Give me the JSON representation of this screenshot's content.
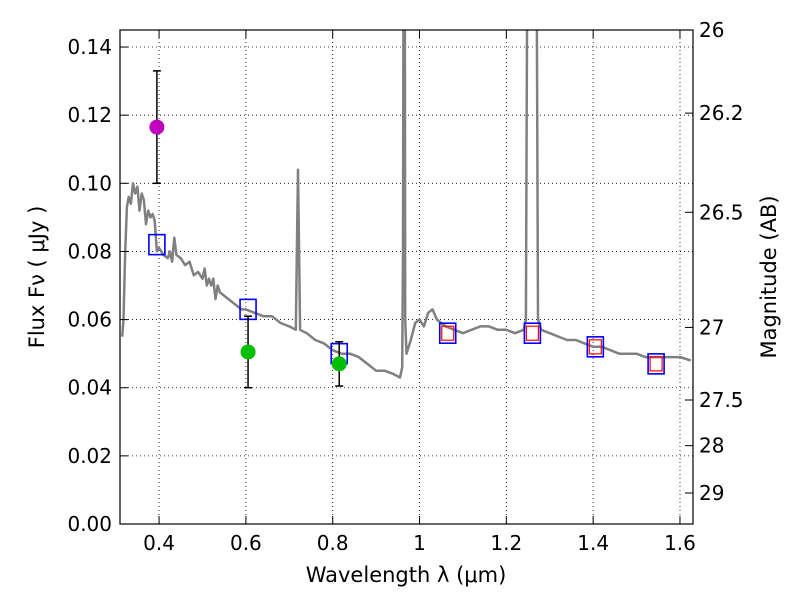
{
  "chart_data": {
    "type": "scatter",
    "title": "",
    "xlabel": "Wavelength  λ (μm)",
    "ylabel": "Flux  Fν  ( μJy )",
    "ylabel_right": "Magnitude (AB)",
    "xlim": [
      0.31,
      1.63
    ],
    "ylim": [
      0.0,
      0.145
    ],
    "grid": true,
    "x_ticks": [
      0.4,
      0.6,
      0.8,
      1.0,
      1.2,
      1.4,
      1.6
    ],
    "x_tick_labels": [
      "0.4",
      "0.6",
      "0.8",
      "1",
      "1.2",
      "1.4",
      "1.6"
    ],
    "y_ticks": [
      0.0,
      0.02,
      0.04,
      0.06,
      0.08,
      0.1,
      0.12,
      0.14
    ],
    "y_tick_labels": [
      "0.00",
      "0.02",
      "0.04",
      "0.06",
      "0.08",
      "0.10",
      "0.12",
      "0.14"
    ],
    "right_ticks": [
      {
        "label": "26",
        "flux": 0.145
      },
      {
        "label": "26.2",
        "flux": 0.1206
      },
      {
        "label": "26.5",
        "flux": 0.0915
      },
      {
        "label": "27",
        "flux": 0.0577
      },
      {
        "label": "27.5",
        "flux": 0.0364
      },
      {
        "label": "28",
        "flux": 0.023
      },
      {
        "label": "29",
        "flux": 0.0091
      }
    ],
    "colors": {
      "sed": "#808080",
      "model_box": "#0000ff",
      "nir_box": "#ff0000",
      "err": "#000000",
      "magenta": "#bf00bf",
      "green": "#00bf00",
      "grid": "#000000"
    },
    "series": [
      {
        "name": "SED model",
        "kind": "line",
        "points": [
          [
            0.315,
            0.055
          ],
          [
            0.318,
            0.06
          ],
          [
            0.322,
            0.08
          ],
          [
            0.326,
            0.093
          ],
          [
            0.33,
            0.096
          ],
          [
            0.335,
            0.094
          ],
          [
            0.34,
            0.1
          ],
          [
            0.345,
            0.097
          ],
          [
            0.35,
            0.099
          ],
          [
            0.355,
            0.092
          ],
          [
            0.36,
            0.097
          ],
          [
            0.365,
            0.095
          ],
          [
            0.37,
            0.088
          ],
          [
            0.375,
            0.092
          ],
          [
            0.38,
            0.09
          ],
          [
            0.385,
            0.091
          ],
          [
            0.39,
            0.089
          ],
          [
            0.395,
            0.08
          ],
          [
            0.4,
            0.081
          ],
          [
            0.41,
            0.079
          ],
          [
            0.42,
            0.078
          ],
          [
            0.425,
            0.08
          ],
          [
            0.43,
            0.077
          ],
          [
            0.435,
            0.084
          ],
          [
            0.44,
            0.079
          ],
          [
            0.45,
            0.078
          ],
          [
            0.46,
            0.076
          ],
          [
            0.47,
            0.077
          ],
          [
            0.48,
            0.073
          ],
          [
            0.49,
            0.074
          ],
          [
            0.5,
            0.072
          ],
          [
            0.505,
            0.075
          ],
          [
            0.51,
            0.07
          ],
          [
            0.515,
            0.072
          ],
          [
            0.52,
            0.07
          ],
          [
            0.525,
            0.072
          ],
          [
            0.53,
            0.066
          ],
          [
            0.535,
            0.07
          ],
          [
            0.54,
            0.068
          ],
          [
            0.55,
            0.067
          ],
          [
            0.56,
            0.066
          ],
          [
            0.57,
            0.065
          ],
          [
            0.58,
            0.064
          ],
          [
            0.59,
            0.063
          ],
          [
            0.6,
            0.063
          ],
          [
            0.62,
            0.062
          ],
          [
            0.64,
            0.061
          ],
          [
            0.66,
            0.061
          ],
          [
            0.68,
            0.059
          ],
          [
            0.7,
            0.058
          ],
          [
            0.715,
            0.057
          ],
          [
            0.72,
            0.104
          ],
          [
            0.725,
            0.057
          ],
          [
            0.74,
            0.056
          ],
          [
            0.76,
            0.054
          ],
          [
            0.78,
            0.053
          ],
          [
            0.8,
            0.051
          ],
          [
            0.82,
            0.05
          ],
          [
            0.84,
            0.05
          ],
          [
            0.86,
            0.049
          ],
          [
            0.88,
            0.047
          ],
          [
            0.9,
            0.045
          ],
          [
            0.92,
            0.045
          ],
          [
            0.94,
            0.044
          ],
          [
            0.955,
            0.043
          ],
          [
            0.96,
            0.046
          ],
          [
            0.962,
            0.08
          ],
          [
            0.963,
            0.16
          ],
          [
            0.966,
            0.16
          ],
          [
            0.967,
            0.06
          ],
          [
            0.97,
            0.05
          ],
          [
            0.98,
            0.054
          ],
          [
            0.99,
            0.059
          ],
          [
            1.0,
            0.06
          ],
          [
            1.01,
            0.058
          ],
          [
            1.02,
            0.062
          ],
          [
            1.03,
            0.063
          ],
          [
            1.04,
            0.06
          ],
          [
            1.06,
            0.058
          ],
          [
            1.08,
            0.057
          ],
          [
            1.1,
            0.056
          ],
          [
            1.12,
            0.057
          ],
          [
            1.14,
            0.058
          ],
          [
            1.16,
            0.058
          ],
          [
            1.18,
            0.057
          ],
          [
            1.2,
            0.057
          ],
          [
            1.22,
            0.056
          ],
          [
            1.24,
            0.057
          ],
          [
            1.245,
            0.06
          ],
          [
            1.248,
            0.16
          ],
          [
            1.27,
            0.16
          ],
          [
            1.273,
            0.06
          ],
          [
            1.28,
            0.057
          ],
          [
            1.3,
            0.056
          ],
          [
            1.32,
            0.055
          ],
          [
            1.34,
            0.054
          ],
          [
            1.36,
            0.054
          ],
          [
            1.38,
            0.053
          ],
          [
            1.4,
            0.052
          ],
          [
            1.42,
            0.052
          ],
          [
            1.44,
            0.051
          ],
          [
            1.46,
            0.05
          ],
          [
            1.48,
            0.05
          ],
          [
            1.5,
            0.05
          ],
          [
            1.52,
            0.049
          ],
          [
            1.54,
            0.049
          ],
          [
            1.56,
            0.049
          ],
          [
            1.58,
            0.049
          ],
          [
            1.6,
            0.049
          ],
          [
            1.625,
            0.048
          ]
        ]
      },
      {
        "name": "Model photometry",
        "kind": "open-square",
        "points": [
          [
            0.395,
            0.082
          ],
          [
            0.605,
            0.063
          ],
          [
            0.815,
            0.05
          ],
          [
            1.065,
            0.056
          ],
          [
            1.26,
            0.056
          ],
          [
            1.405,
            0.052
          ],
          [
            1.545,
            0.047
          ]
        ]
      },
      {
        "name": "NIR photometry",
        "kind": "open-square-small",
        "points": [
          [
            1.065,
            0.056
          ],
          [
            1.26,
            0.056
          ],
          [
            1.405,
            0.052
          ],
          [
            1.545,
            0.047
          ]
        ]
      },
      {
        "name": "Observed (magenta)",
        "kind": "filled-circle",
        "color": "magenta",
        "points": [
          [
            0.395,
            0.1165,
            0.1,
            0.133
          ]
        ]
      },
      {
        "name": "Observed (green)",
        "kind": "filled-circle",
        "color": "green",
        "points": [
          [
            0.605,
            0.0505,
            0.04,
            0.061
          ],
          [
            0.815,
            0.047,
            0.0405,
            0.0535
          ]
        ]
      }
    ]
  }
}
